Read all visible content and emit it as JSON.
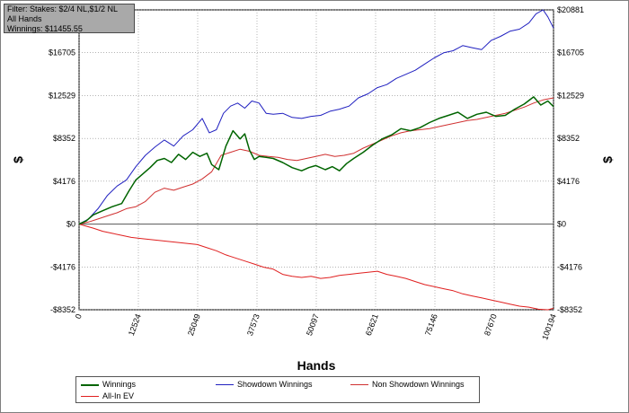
{
  "filter_box": {
    "line1": "Filter: Stakes: $2/4 NL,$1/2 NL",
    "line2": "All Hands",
    "line3": "Winnings: $11455.55"
  },
  "chart_data": {
    "type": "line",
    "xlabel": "Hands",
    "ylabel": "$",
    "xlim": [
      0,
      100194
    ],
    "ylim": [
      -8352,
      20881
    ],
    "x_ticks": [
      {
        "value": 0,
        "label": "0"
      },
      {
        "value": 12524,
        "label": "12524"
      },
      {
        "value": 25049,
        "label": "25049"
      },
      {
        "value": 37573,
        "label": "37573"
      },
      {
        "value": 50097,
        "label": "50097"
      },
      {
        "value": 62621,
        "label": "62621"
      },
      {
        "value": 75146,
        "label": "75146"
      },
      {
        "value": 87670,
        "label": "87670"
      },
      {
        "value": 100194,
        "label": "100194"
      }
    ],
    "y_ticks": [
      {
        "value": 20881,
        "label": "$20881"
      },
      {
        "value": 16705,
        "label": "$16705"
      },
      {
        "value": 12529,
        "label": "$12529"
      },
      {
        "value": 8352,
        "label": "$8352"
      },
      {
        "value": 4176,
        "label": "$4176"
      },
      {
        "value": 0,
        "label": "$0"
      },
      {
        "value": -4176,
        "label": "-$4176"
      },
      {
        "value": -8352,
        "label": "-$8352"
      }
    ],
    "grid": true,
    "legend_position": "bottom",
    "series": [
      {
        "name": "Winnings",
        "color": "#006400",
        "x": [
          0,
          1500,
          3000,
          5000,
          7000,
          9000,
          10500,
          12000,
          13500,
          15000,
          16500,
          18000,
          19500,
          21000,
          22500,
          24000,
          25500,
          27000,
          28000,
          29500,
          31000,
          32500,
          34000,
          35000,
          36000,
          37000,
          38000,
          39500,
          41000,
          43000,
          45000,
          47000,
          48500,
          50000,
          52000,
          53500,
          55000,
          56500,
          58000,
          60000,
          62000,
          64000,
          66000,
          68000,
          70000,
          72000,
          74000,
          76000,
          78000,
          80000,
          82000,
          84000,
          86000,
          88000,
          90000,
          92000,
          94000,
          96000,
          97500,
          99000,
          100194
        ],
        "values": [
          0,
          300,
          900,
          1300,
          1700,
          2000,
          3200,
          4300,
          4900,
          5500,
          6200,
          6400,
          6000,
          6800,
          6300,
          7000,
          6600,
          6900,
          5800,
          5300,
          7600,
          9100,
          8300,
          8800,
          7200,
          6300,
          6600,
          6500,
          6400,
          6000,
          5500,
          5200,
          5500,
          5700,
          5300,
          5600,
          5200,
          5900,
          6400,
          7000,
          7700,
          8300,
          8700,
          9300,
          9100,
          9400,
          9900,
          10300,
          10600,
          10900,
          10300,
          10700,
          10900,
          10500,
          10600,
          11200,
          11700,
          12400,
          11600,
          12000,
          11455
        ]
      },
      {
        "name": "Showdown Winnings",
        "color": "#2020c0",
        "x": [
          0,
          2000,
          4000,
          6000,
          8000,
          10000,
          12000,
          14000,
          16000,
          18000,
          20000,
          22000,
          24000,
          26000,
          27500,
          29000,
          30500,
          32000,
          33500,
          35000,
          36500,
          38000,
          39500,
          41000,
          43000,
          45000,
          47000,
          49000,
          51000,
          53000,
          55000,
          57000,
          59000,
          61000,
          63000,
          65000,
          67000,
          69000,
          71000,
          73000,
          75000,
          77000,
          79000,
          81000,
          83000,
          85000,
          87000,
          89000,
          91000,
          93000,
          95000,
          96500,
          98000,
          99000,
          100194
        ],
        "values": [
          0,
          500,
          1500,
          2800,
          3700,
          4300,
          5600,
          6700,
          7500,
          8200,
          7600,
          8600,
          9200,
          10300,
          8900,
          9200,
          10800,
          11500,
          11800,
          11300,
          12000,
          11800,
          10800,
          10700,
          10800,
          10400,
          10300,
          10500,
          10600,
          11000,
          11200,
          11500,
          12300,
          12700,
          13300,
          13600,
          14200,
          14600,
          15000,
          15600,
          16200,
          16700,
          16900,
          17400,
          17200,
          17000,
          17900,
          18300,
          18800,
          19000,
          19600,
          20500,
          20881,
          20200,
          19100
        ]
      },
      {
        "name": "Non Showdown Winnings",
        "color": "#d03030",
        "x": [
          0,
          2000,
          4000,
          6000,
          8000,
          10000,
          12000,
          14000,
          16000,
          18000,
          20000,
          22000,
          24000,
          26000,
          28000,
          30000,
          32000,
          34000,
          36000,
          38000,
          40000,
          42000,
          44000,
          46000,
          48000,
          50000,
          52000,
          54000,
          56000,
          58000,
          60000,
          62000,
          64000,
          66000,
          68000,
          70000,
          72000,
          74000,
          76000,
          78000,
          80000,
          82000,
          84000,
          86000,
          88000,
          90000,
          92000,
          94000,
          96000,
          98000,
          100194
        ],
        "values": [
          0,
          200,
          500,
          800,
          1100,
          1500,
          1700,
          2200,
          3100,
          3500,
          3300,
          3600,
          3900,
          4400,
          5100,
          6700,
          7000,
          7300,
          7100,
          6700,
          6600,
          6500,
          6300,
          6200,
          6400,
          6600,
          6800,
          6600,
          6700,
          6900,
          7400,
          7800,
          8200,
          8600,
          8900,
          9100,
          9200,
          9300,
          9500,
          9700,
          9900,
          10100,
          10200,
          10400,
          10600,
          10800,
          11100,
          11400,
          11800,
          12100,
          12300
        ]
      },
      {
        "name": "All-In EV",
        "color": "#e02020",
        "x": [
          0,
          1500,
          3000,
          5000,
          7000,
          9000,
          11000,
          13000,
          15000,
          17000,
          19000,
          21000,
          23000,
          25000,
          27000,
          29000,
          31000,
          33000,
          35000,
          37000,
          39000,
          41000,
          43000,
          45000,
          47000,
          49000,
          51000,
          53000,
          55000,
          57000,
          59000,
          61000,
          63000,
          65000,
          67000,
          69000,
          71000,
          73000,
          75000,
          77000,
          79000,
          81000,
          83000,
          85000,
          87000,
          89000,
          91000,
          93000,
          95000,
          97000,
          99000,
          100194
        ],
        "values": [
          0,
          -200,
          -400,
          -700,
          -900,
          -1100,
          -1300,
          -1400,
          -1500,
          -1600,
          -1700,
          -1800,
          -1900,
          -2000,
          -2300,
          -2600,
          -3000,
          -3300,
          -3600,
          -3900,
          -4200,
          -4400,
          -4900,
          -5100,
          -5200,
          -5100,
          -5300,
          -5200,
          -5000,
          -4900,
          -4800,
          -4700,
          -4600,
          -4900,
          -5100,
          -5300,
          -5600,
          -5900,
          -6100,
          -6300,
          -6500,
          -6800,
          -7000,
          -7200,
          -7400,
          -7600,
          -7800,
          -8000,
          -8100,
          -8300,
          -8352,
          -8200
        ]
      }
    ]
  },
  "legend": {
    "items": [
      {
        "label": "Winnings",
        "color": "#006400"
      },
      {
        "label": "Showdown Winnings",
        "color": "#2020c0"
      },
      {
        "label": "Non Showdown Winnings",
        "color": "#d03030"
      },
      {
        "label": "All-In EV",
        "color": "#e02020"
      }
    ]
  }
}
